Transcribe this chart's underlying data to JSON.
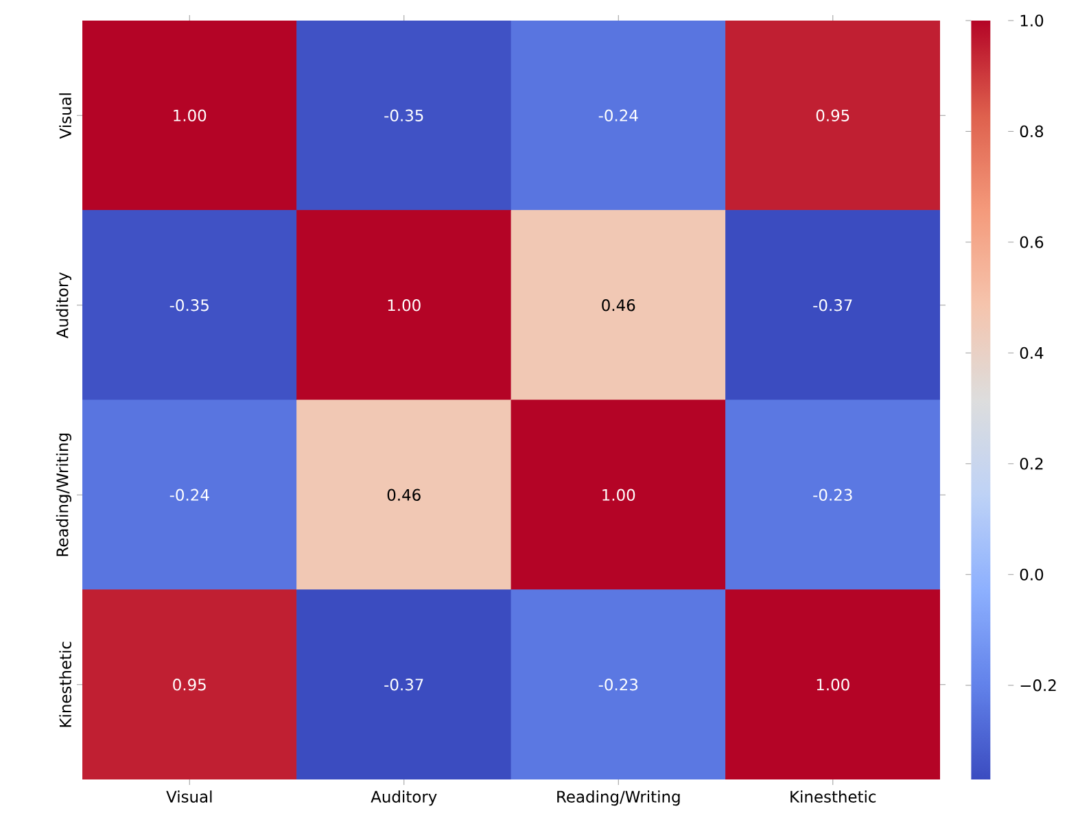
{
  "chart_data": {
    "type": "heatmap",
    "categories": [
      "Visual",
      "Auditory",
      "Reading/Writing",
      "Kinesthetic"
    ],
    "y_categories": [
      "Visual",
      "Auditory",
      "Reading/Writing",
      "Kinesthetic"
    ],
    "cells": [
      [
        1.0,
        -0.35,
        -0.24,
        0.95
      ],
      [
        -0.35,
        1.0,
        0.46,
        -0.37
      ],
      [
        -0.24,
        0.46,
        1.0,
        -0.23
      ],
      [
        0.95,
        -0.37,
        -0.23,
        1.0
      ]
    ],
    "cell_labels": [
      [
        "1.00",
        "-0.35",
        "-0.24",
        "0.95"
      ],
      [
        "-0.35",
        "1.00",
        "0.46",
        "-0.37"
      ],
      [
        "-0.24",
        "0.46",
        "1.00",
        "-0.23"
      ],
      [
        "0.95",
        "-0.37",
        "-0.23",
        "1.00"
      ]
    ],
    "clim": [
      -0.37,
      1.0
    ],
    "cticks": [
      {
        "value": -0.2,
        "label": "−0.2"
      },
      {
        "value": 0.0,
        "label": "0.0"
      },
      {
        "value": 0.2,
        "label": "0.2"
      },
      {
        "value": 0.4,
        "label": "0.4"
      },
      {
        "value": 0.6,
        "label": "0.6"
      },
      {
        "value": 0.8,
        "label": "0.8"
      },
      {
        "value": 1.0,
        "label": "1.0"
      }
    ]
  }
}
